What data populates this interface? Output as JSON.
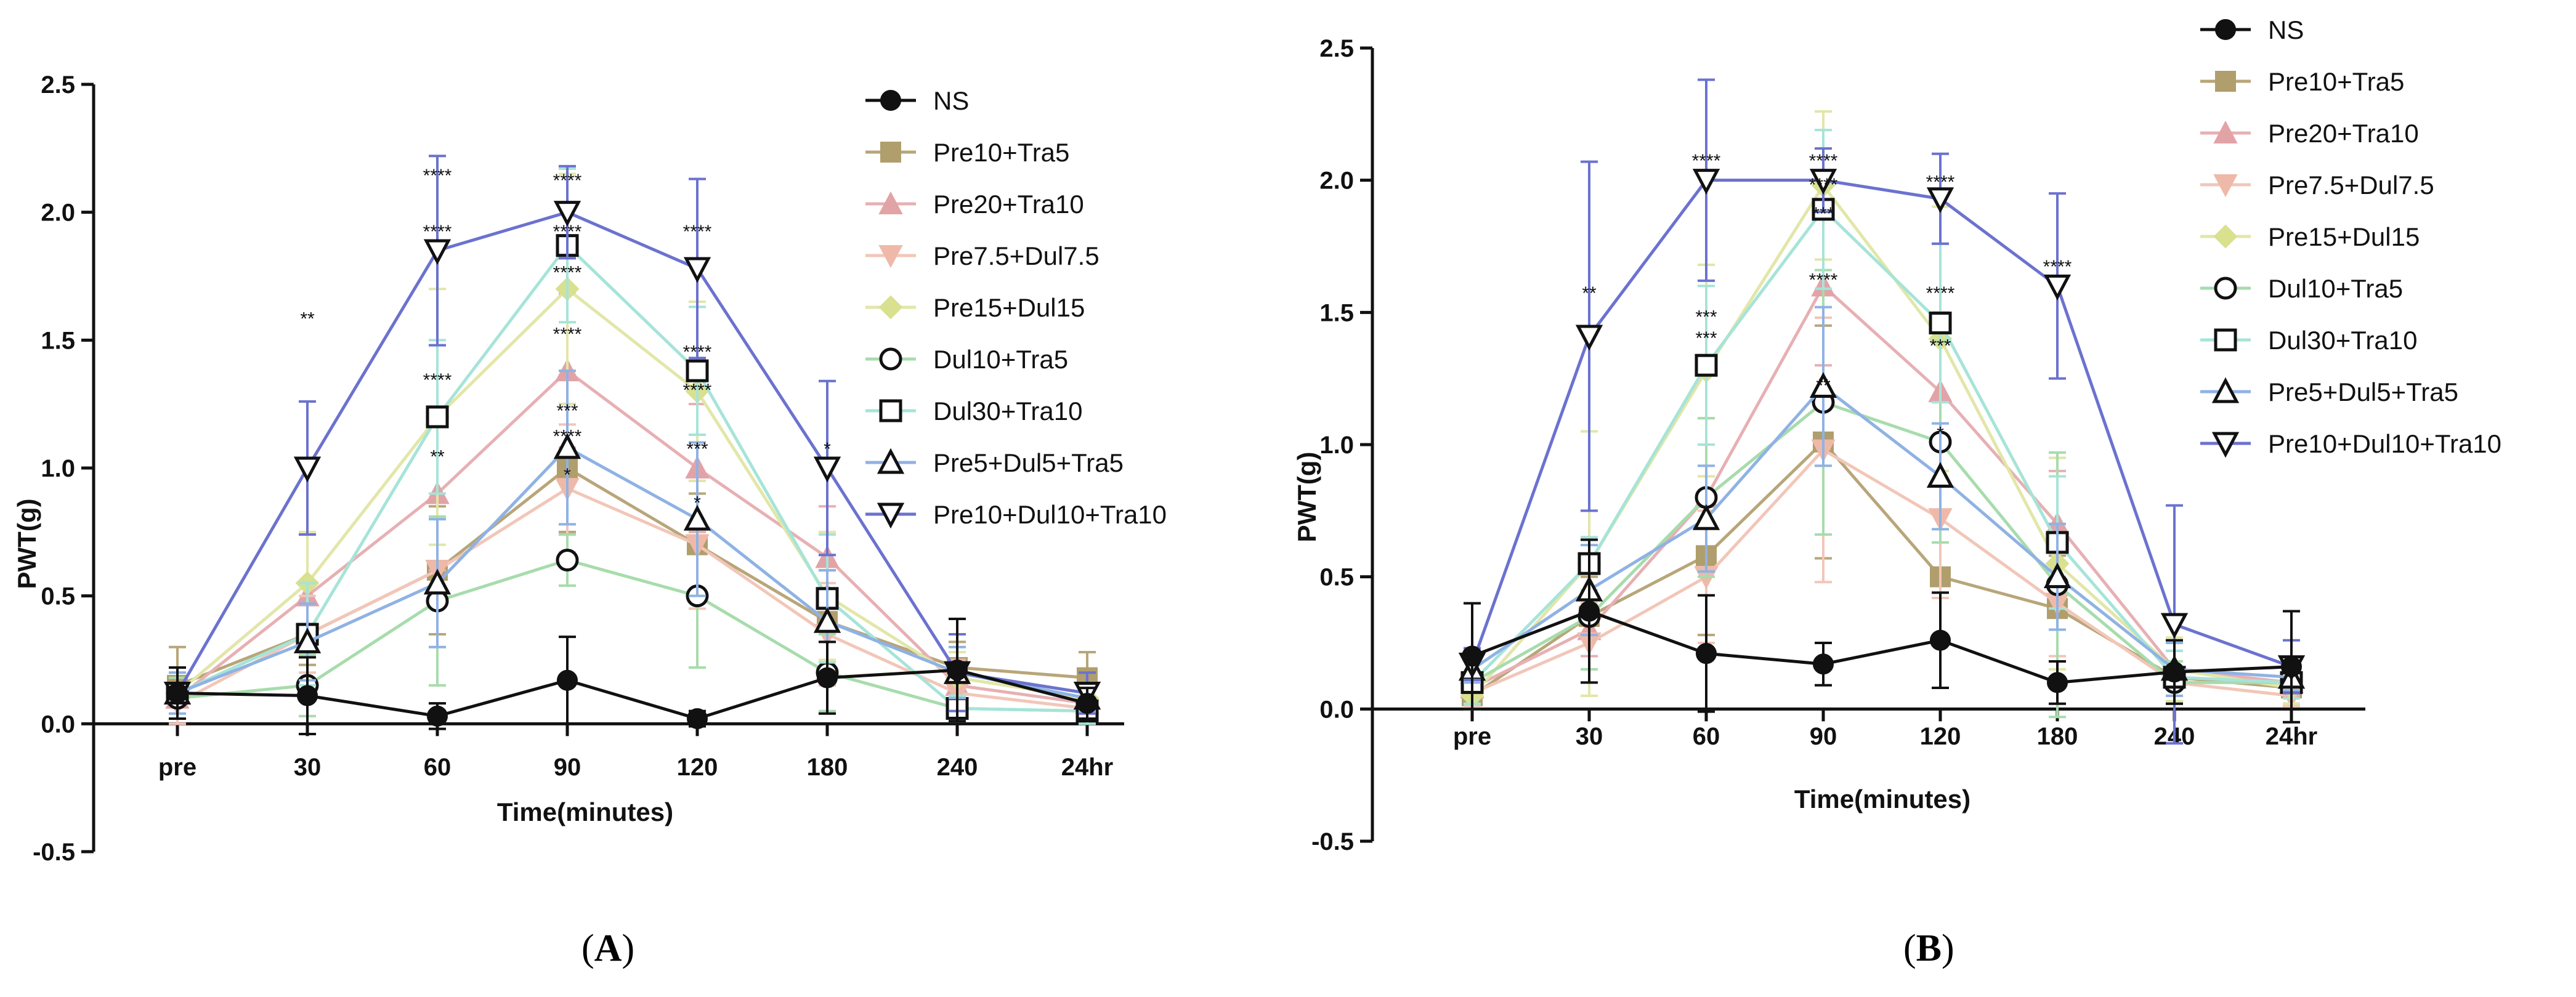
{
  "categories": [
    "pre",
    "30",
    "60",
    "90",
    "120",
    "180",
    "240",
    "24hr"
  ],
  "series_styles": {
    "NS": {
      "color": "#111111",
      "marker": "filled-circle",
      "line": "#111111"
    },
    "Pre10+Tra5": {
      "color": "#b09e6c",
      "marker": "filled-square",
      "line": "#b8a679"
    },
    "Pre20+Tra10": {
      "color": "#e2a3a7",
      "marker": "filled-triangle-up",
      "line": "#e7b0b3"
    },
    "Pre7.5+Dul7.5": {
      "color": "#efb9a9",
      "marker": "filled-triangle-down",
      "line": "#f2c6b8"
    },
    "Pre15+Dul15": {
      "color": "#d9e08f",
      "marker": "filled-diamond",
      "line": "#e2e6a8"
    },
    "Dul10+Tra5": {
      "color": "#96d49c",
      "marker": "open-circle",
      "line": "#a7dcac"
    },
    "Dul30+Tra10": {
      "color": "#95ded0",
      "marker": "open-square",
      "line": "#a6e4d8"
    },
    "Pre5+Dul5+Tra5": {
      "color": "#8fb2e4",
      "marker": "open-triangle-up",
      "line": "#8fb2e4"
    },
    "Pre10+Dul10+Tra10": {
      "color": "#6b72cf",
      "marker": "open-triangle-down",
      "line": "#6b72cf"
    }
  },
  "chart_data": [
    {
      "type": "line",
      "panel": "A",
      "panel_label": "A",
      "title": "",
      "xlabel": "Time(minutes)",
      "ylabel": "PWT(g)",
      "ylim": [
        -0.5,
        2.5
      ],
      "yticks": [
        "-0.5",
        "0.0",
        "0.5",
        "1.0",
        "1.5",
        "2.0",
        "2.5"
      ],
      "legend_position": "right",
      "categories": [
        "pre",
        "30",
        "60",
        "90",
        "120",
        "180",
        "240",
        "24hr"
      ],
      "series": [
        {
          "name": "NS",
          "values": [
            0.12,
            0.11,
            0.03,
            0.17,
            0.02,
            0.18,
            0.21,
            0.08
          ],
          "errors": [
            0.1,
            0.15,
            0.05,
            0.17,
            0.03,
            0.14,
            0.2,
            0.06
          ]
        },
        {
          "name": "Pre10+Tra5",
          "values": [
            0.15,
            0.35,
            0.6,
            1.0,
            0.7,
            0.4,
            0.22,
            0.18
          ],
          "errors": [
            0.15,
            0.12,
            0.25,
            0.25,
            0.2,
            0.2,
            0.1,
            0.1
          ]
        },
        {
          "name": "Pre20+Tra10",
          "values": [
            0.1,
            0.5,
            0.9,
            1.38,
            1.0,
            0.65,
            0.15,
            0.08
          ],
          "errors": [
            0.1,
            0.24,
            0.3,
            0.3,
            0.25,
            0.2,
            0.1,
            0.06
          ]
        },
        {
          "name": "Pre7.5+Dul7.5",
          "values": [
            0.08,
            0.35,
            0.6,
            0.92,
            0.7,
            0.35,
            0.12,
            0.06
          ],
          "errors": [
            0.08,
            0.15,
            0.3,
            0.25,
            0.25,
            0.2,
            0.1,
            0.05
          ]
        },
        {
          "name": "Pre15+Dul15",
          "values": [
            0.12,
            0.55,
            1.2,
            1.7,
            1.3,
            0.5,
            0.18,
            0.1
          ],
          "errors": [
            0.1,
            0.2,
            0.5,
            0.45,
            0.35,
            0.25,
            0.1,
            0.06
          ]
        },
        {
          "name": "Dul10+Tra5",
          "values": [
            0.1,
            0.15,
            0.48,
            0.64,
            0.5,
            0.2,
            0.06,
            0.05
          ],
          "errors": [
            0.08,
            0.12,
            0.33,
            0.1,
            0.28,
            0.15,
            0.05,
            0.04
          ]
        },
        {
          "name": "Dul30+Tra10",
          "values": [
            0.12,
            0.35,
            1.2,
            1.87,
            1.38,
            0.49,
            0.06,
            0.05
          ],
          "errors": [
            0.1,
            0.2,
            0.3,
            0.3,
            0.25,
            0.25,
            0.05,
            0.05
          ]
        },
        {
          "name": "Pre5+Dul5+Tra5",
          "values": [
            0.12,
            0.32,
            0.55,
            1.08,
            0.8,
            0.4,
            0.2,
            0.1
          ],
          "errors": [
            0.08,
            0.15,
            0.25,
            0.3,
            0.3,
            0.2,
            0.1,
            0.05
          ]
        },
        {
          "name": "Pre10+Dul10+Tra10",
          "values": [
            0.12,
            1.0,
            1.85,
            2.0,
            1.78,
            1.0,
            0.2,
            0.12
          ],
          "errors": [
            0.1,
            0.26,
            0.37,
            0.18,
            0.35,
            0.34,
            0.15,
            0.08
          ]
        }
      ],
      "annotations": [
        {
          "x": "30",
          "y": 1.56,
          "text": "**"
        },
        {
          "x": "60",
          "y": 1.02,
          "text": "**"
        },
        {
          "x": "60",
          "y": 1.32,
          "text": "****"
        },
        {
          "x": "60",
          "y": 1.9,
          "text": "****"
        },
        {
          "x": "60",
          "y": 2.12,
          "text": "****"
        },
        {
          "x": "90",
          "y": 0.95,
          "text": "*"
        },
        {
          "x": "90",
          "y": 1.1,
          "text": "****"
        },
        {
          "x": "90",
          "y": 1.2,
          "text": "***"
        },
        {
          "x": "90",
          "y": 1.5,
          "text": "****"
        },
        {
          "x": "90",
          "y": 1.74,
          "text": "****"
        },
        {
          "x": "90",
          "y": 1.9,
          "text": "****"
        },
        {
          "x": "90",
          "y": 2.1,
          "text": "****"
        },
        {
          "x": "120",
          "y": 0.84,
          "text": "*"
        },
        {
          "x": "120",
          "y": 1.05,
          "text": "***"
        },
        {
          "x": "120",
          "y": 1.28,
          "text": "****"
        },
        {
          "x": "120",
          "y": 1.43,
          "text": "****"
        },
        {
          "x": "120",
          "y": 1.9,
          "text": "****"
        },
        {
          "x": "180",
          "y": 1.05,
          "text": "*"
        }
      ]
    },
    {
      "type": "line",
      "panel": "B",
      "panel_label": "B",
      "title": "",
      "xlabel": "Time(minutes)",
      "ylabel": "PWT(g)",
      "ylim": [
        -0.5,
        2.5
      ],
      "yticks": [
        "-0.5",
        "0.0",
        "0.5",
        "1.0",
        "1.5",
        "2.0",
        "2.5"
      ],
      "legend_position": "top-right",
      "categories": [
        "pre",
        "30",
        "60",
        "90",
        "120",
        "180",
        "240",
        "24hr"
      ],
      "series": [
        {
          "name": "NS",
          "values": [
            0.2,
            0.37,
            0.21,
            0.17,
            0.26,
            0.1,
            0.14,
            0.16
          ],
          "errors": [
            0.2,
            0.27,
            0.22,
            0.08,
            0.18,
            0.08,
            0.12,
            0.21
          ]
        },
        {
          "name": "Pre10+Tra5",
          "values": [
            0.05,
            0.35,
            0.58,
            1.01,
            0.5,
            0.38,
            0.12,
            0.08
          ],
          "errors": [
            0.05,
            0.15,
            0.3,
            0.44,
            0.25,
            0.2,
            0.1,
            0.06
          ]
        },
        {
          "name": "Pre20+Tra10",
          "values": [
            0.08,
            0.3,
            0.8,
            1.6,
            1.2,
            0.7,
            0.15,
            0.1
          ],
          "errors": [
            0.06,
            0.1,
            0.3,
            0.3,
            0.3,
            0.2,
            0.1,
            0.05
          ]
        },
        {
          "name": "Pre7.5+Dul7.5",
          "values": [
            0.06,
            0.25,
            0.5,
            0.98,
            0.72,
            0.4,
            0.1,
            0.05
          ],
          "errors": [
            0.05,
            0.15,
            0.25,
            0.5,
            0.3,
            0.2,
            0.08,
            0.04
          ]
        },
        {
          "name": "Pre15+Dul15",
          "values": [
            0.05,
            0.55,
            1.28,
            1.98,
            1.4,
            0.55,
            0.15,
            0.08
          ],
          "errors": [
            0.05,
            0.5,
            0.4,
            0.28,
            0.5,
            0.4,
            0.12,
            0.06
          ]
        },
        {
          "name": "Dul10+Tra5",
          "values": [
            0.1,
            0.35,
            0.8,
            1.16,
            1.01,
            0.47,
            0.1,
            0.1
          ],
          "errors": [
            0.08,
            0.2,
            0.3,
            0.5,
            0.38,
            0.5,
            0.08,
            0.06
          ]
        },
        {
          "name": "Dul30+Tra10",
          "values": [
            0.1,
            0.55,
            1.3,
            1.89,
            1.46,
            0.63,
            0.12,
            0.1
          ],
          "errors": [
            0.08,
            0.1,
            0.3,
            0.3,
            0.3,
            0.25,
            0.1,
            0.06
          ]
        },
        {
          "name": "Pre5+Dul5+Tra5",
          "values": [
            0.15,
            0.45,
            0.72,
            1.22,
            0.88,
            0.5,
            0.15,
            0.12
          ],
          "errors": [
            0.05,
            0.17,
            0.2,
            0.3,
            0.2,
            0.2,
            0.1,
            0.05
          ]
        },
        {
          "name": "Pre10+Dul10+Tra10",
          "values": [
            0.17,
            1.41,
            2.0,
            2.0,
            1.93,
            1.6,
            0.32,
            0.16
          ],
          "errors": [
            0.06,
            0.66,
            0.38,
            0.12,
            0.17,
            0.35,
            0.45,
            0.1
          ]
        }
      ],
      "annotations": [
        {
          "x": "30",
          "y": 1.55,
          "text": "**"
        },
        {
          "x": "60",
          "y": 1.38,
          "text": "***"
        },
        {
          "x": "60",
          "y": 1.46,
          "text": "***"
        },
        {
          "x": "60",
          "y": 2.05,
          "text": "****"
        },
        {
          "x": "90",
          "y": 1.2,
          "text": "**"
        },
        {
          "x": "90",
          "y": 1.2,
          "text": "**"
        },
        {
          "x": "90",
          "y": 1.6,
          "text": "****"
        },
        {
          "x": "90",
          "y": 1.85,
          "text": "***"
        },
        {
          "x": "90",
          "y": 1.96,
          "text": "****"
        },
        {
          "x": "90",
          "y": 2.05,
          "text": "****"
        },
        {
          "x": "120",
          "y": 1.02,
          "text": "*"
        },
        {
          "x": "120",
          "y": 1.35,
          "text": "***"
        },
        {
          "x": "120",
          "y": 1.55,
          "text": "****"
        },
        {
          "x": "120",
          "y": 1.97,
          "text": "****"
        },
        {
          "x": "180",
          "y": 1.65,
          "text": "****"
        }
      ]
    }
  ]
}
